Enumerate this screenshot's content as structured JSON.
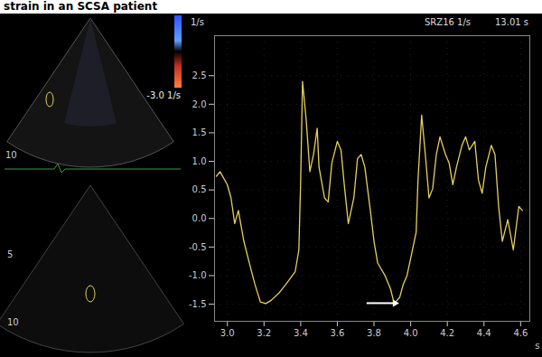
{
  "chart_data": {
    "type": "line",
    "title": "strain in an SCSA patient",
    "y_label": "1/s",
    "x_label": "s",
    "header_texts": [
      "SRZ16 1/s",
      "13.01 s"
    ],
    "color": "#e6cf5a",
    "x": [
      2.94,
      2.96,
      3.0,
      3.02,
      3.04,
      3.06,
      3.09,
      3.12,
      3.15,
      3.18,
      3.21,
      3.24,
      3.28,
      3.32,
      3.37,
      3.39,
      3.4,
      3.41,
      3.43,
      3.45,
      3.47,
      3.49,
      3.5,
      3.53,
      3.55,
      3.57,
      3.6,
      3.62,
      3.64,
      3.66,
      3.69,
      3.71,
      3.73,
      3.75,
      3.78,
      3.8,
      3.82,
      3.86,
      3.89,
      3.91,
      3.94,
      3.96,
      3.98,
      4.0,
      4.03,
      4.04,
      4.06,
      4.08,
      4.1,
      4.12,
      4.14,
      4.16,
      4.19,
      4.21,
      4.23,
      4.25,
      4.28,
      4.3,
      4.32,
      4.35,
      4.37,
      4.39,
      4.41,
      4.44,
      4.46,
      4.48,
      4.5,
      4.53,
      4.56,
      4.59,
      4.61
    ],
    "values": [
      0.74,
      0.82,
      0.59,
      0.36,
      -0.09,
      0.14,
      -0.4,
      -0.78,
      -1.15,
      -1.46,
      -1.49,
      -1.43,
      -1.31,
      -1.15,
      -0.93,
      -0.55,
      0.67,
      2.4,
      1.73,
      0.82,
      1.12,
      1.58,
      0.9,
      0.36,
      0.29,
      0.97,
      1.35,
      1.2,
      0.52,
      -0.09,
      0.36,
      1.05,
      1.12,
      0.9,
      0.14,
      -0.4,
      -0.78,
      -1.0,
      -1.23,
      -1.49,
      -1.38,
      -1.15,
      -1.0,
      -0.7,
      -0.24,
      0.67,
      1.81,
      1.12,
      0.36,
      0.52,
      1.12,
      1.43,
      1.12,
      0.97,
      0.59,
      0.9,
      1.28,
      1.43,
      1.2,
      1.35,
      0.67,
      0.44,
      0.9,
      1.28,
      1.12,
      0.21,
      -0.4,
      -0.02,
      -0.55,
      0.21,
      0.14
    ],
    "xlim": [
      2.93,
      4.65
    ],
    "xticks": [
      {
        "value": 3,
        "label": "3.0"
      },
      3.2,
      3.4,
      3.6,
      3.8,
      {
        "value": 4,
        "label": "4.0"
      },
      4.2,
      4.4,
      4.6
    ],
    "ylim": [
      -1.8,
      3.2
    ],
    "yticks": [
      {
        "value": -1.5,
        "label": "-1.5"
      },
      {
        "value": -1,
        "label": "-1.0"
      },
      {
        "value": -0.5,
        "label": "-0.5"
      },
      {
        "value": 0,
        "label": "0.0"
      },
      {
        "value": 0.5,
        "label": "0.5"
      },
      {
        "value": 1,
        "label": "1.0"
      },
      {
        "value": 1.5,
        "label": "1.5"
      },
      {
        "value": 2,
        "label": "2.0"
      },
      {
        "value": 2.5,
        "label": "2.5"
      }
    ],
    "grid": true,
    "annotations": [
      {
        "x": 3.91,
        "y": -1.49,
        "marker": "arrow"
      }
    ]
  },
  "ultrasound_panels": {
    "colorbar_label": "-3.0 1/s",
    "top_depth_labels": [
      "10"
    ],
    "bottom_depth_labels": [
      "5",
      "10"
    ]
  }
}
